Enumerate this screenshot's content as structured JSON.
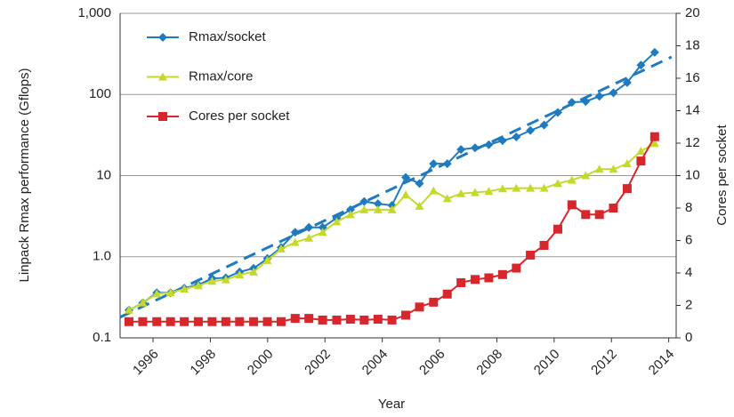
{
  "chart_data": {
    "type": "line",
    "x_label": "Year",
    "y_label": "Linpack Rmax performance (Gflops)",
    "y2_label": "Cores per socket",
    "x": [
      1995.16,
      1995.64,
      1996.13,
      1996.61,
      1997.09,
      1997.58,
      1998.06,
      1998.54,
      1999.02,
      1999.51,
      1999.99,
      2000.47,
      2000.96,
      2001.44,
      2001.92,
      2002.41,
      2002.89,
      2003.37,
      2003.85,
      2004.34,
      2004.82,
      2005.3,
      2005.79,
      2006.27,
      2006.75,
      2007.24,
      2007.72,
      2008.2,
      2008.68,
      2009.17,
      2009.65,
      2010.13,
      2010.62,
      2011.1,
      2011.58,
      2012.07,
      2012.55,
      2013.03,
      2013.51
    ],
    "series": [
      {
        "name": "Rmax/socket",
        "color": "#1f7ac0",
        "marker": "diamond",
        "values": [
          0.22,
          0.27,
          0.36,
          0.36,
          0.41,
          0.45,
          0.54,
          0.55,
          0.65,
          0.72,
          0.95,
          1.3,
          2.0,
          2.3,
          2.3,
          3.0,
          3.8,
          4.8,
          4.5,
          4.3,
          9.5,
          8.0,
          14,
          14,
          21,
          22,
          24,
          27,
          30,
          36,
          42,
          60,
          80,
          82,
          95,
          105,
          140,
          230,
          330
        ]
      },
      {
        "name": "Rmax/core",
        "color": "#c5d92b",
        "marker": "triangle",
        "values": [
          0.22,
          0.27,
          0.35,
          0.36,
          0.4,
          0.44,
          0.5,
          0.52,
          0.6,
          0.65,
          0.9,
          1.25,
          1.5,
          1.7,
          2.0,
          2.7,
          3.3,
          3.8,
          3.8,
          3.8,
          5.8,
          4.2,
          6.5,
          5.2,
          6.0,
          6.2,
          6.4,
          6.9,
          7.0,
          7.0,
          7.0,
          8.0,
          8.8,
          10,
          12,
          12,
          14,
          20,
          25
        ]
      },
      {
        "name": "Cores per socket",
        "color": "#d7262c",
        "marker": "square",
        "axis": "y2",
        "values": [
          1,
          1,
          1,
          1,
          1,
          1,
          1,
          1,
          1,
          1,
          1,
          1,
          1.2,
          1.2,
          1.1,
          1.1,
          1.15,
          1.1,
          1.15,
          1.1,
          1.4,
          1.9,
          2.2,
          2.7,
          3.4,
          3.6,
          3.7,
          3.9,
          4.3,
          5.1,
          5.7,
          6.7,
          8.2,
          7.6,
          7.6,
          8.0,
          9.2,
          10.9,
          12.4
        ]
      }
    ],
    "trend": {
      "color": "#1f7ac0",
      "style": "dashed",
      "x": [
        1994.85,
        2014.1
      ],
      "values": [
        0.18,
        290
      ]
    },
    "xlim": [
      1994.85,
      2014.26
    ],
    "xticks": [
      1996,
      1998,
      2000,
      2002,
      2004,
      2006,
      2008,
      2010,
      2012,
      2014
    ],
    "ylim": [
      0.1,
      1000
    ],
    "yscale": "log",
    "yticks": [
      0.1,
      {
        "value": 1,
        "label": "1.0"
      },
      10,
      100,
      {
        "value": 1000,
        "label": "1,000"
      }
    ],
    "y2lim": [
      0,
      20
    ],
    "y2ticks": [
      0,
      2,
      4,
      6,
      8,
      10,
      12,
      14,
      16,
      18,
      20
    ],
    "grid": true,
    "legend": "top-left"
  }
}
